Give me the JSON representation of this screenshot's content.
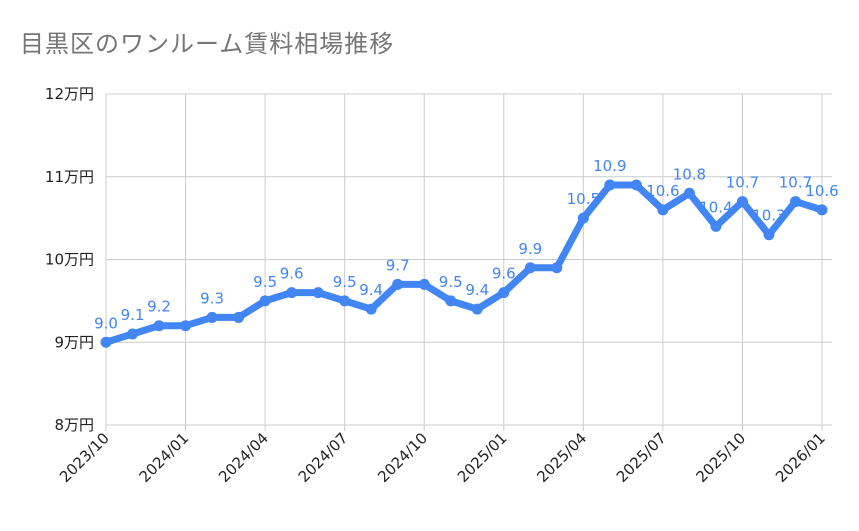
{
  "chart_data": {
    "type": "line",
    "title": "目黒区のワンルーム賃料相場推移",
    "x": [
      "2023/10",
      "2023/11",
      "2023/12",
      "2024/01",
      "2024/02",
      "2024/03",
      "2024/04",
      "2024/05",
      "2024/06",
      "2024/07",
      "2024/08",
      "2024/09",
      "2024/10",
      "2024/11",
      "2024/12",
      "2025/01",
      "2025/02",
      "2025/03",
      "2025/04",
      "2025/05",
      "2025/06",
      "2025/07",
      "2025/08",
      "2025/09",
      "2025/10",
      "2025/11",
      "2025/12",
      "2026/01"
    ],
    "values": [
      9.0,
      9.1,
      9.2,
      9.2,
      9.3,
      9.3,
      9.5,
      9.6,
      9.6,
      9.5,
      9.4,
      9.7,
      9.7,
      9.5,
      9.4,
      9.6,
      9.9,
      9.9,
      10.5,
      10.9,
      10.9,
      10.6,
      10.8,
      10.4,
      10.7,
      10.3,
      10.7,
      10.6
    ],
    "data_labels": [
      "9.0",
      "9.1",
      "9.2",
      "",
      "9.3",
      "",
      "9.5",
      "9.6",
      "",
      "9.5",
      "9.4",
      "9.7",
      "",
      "9.5",
      "9.4",
      "9.6",
      "9.9",
      "",
      "10.5",
      "10.9",
      "",
      "10.6",
      "10.8",
      "10.4",
      "10.7",
      "10.3",
      "10.7",
      "10.6"
    ],
    "x_tick_labels": [
      "2023/10",
      "2024/01",
      "2024/04",
      "2024/07",
      "2024/10",
      "2025/01",
      "2025/04",
      "2025/07",
      "2025/10",
      "2026/01"
    ],
    "y_ticks": [
      8,
      9,
      10,
      11,
      12
    ],
    "y_tick_labels": [
      "8万円",
      "9万円",
      "10万円",
      "11万円",
      "12万円"
    ],
    "ylim": [
      8,
      12
    ],
    "grid": true,
    "legend": "none",
    "line_color": "#4285f4"
  }
}
